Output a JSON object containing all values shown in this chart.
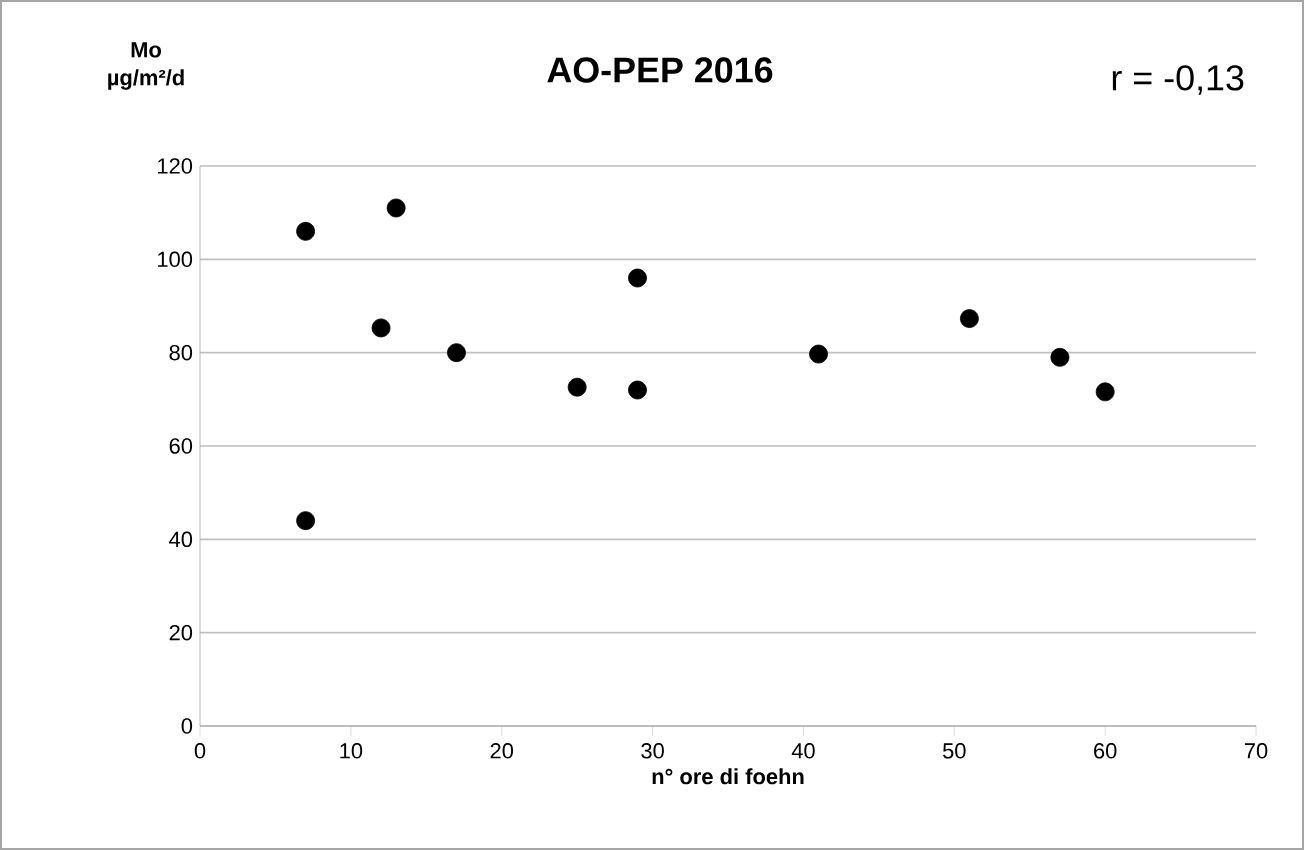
{
  "chart_data": {
    "type": "scatter",
    "title": "AO-PEP 2016",
    "xlabel": "n° ore di foehn",
    "ylabel": "Mo µg/m²/d",
    "annotations": [
      "r = -0,13"
    ],
    "x": [
      7,
      7,
      12,
      13,
      17,
      25,
      29,
      29,
      41,
      51,
      57,
      60
    ],
    "values": [
      106,
      44,
      85.3,
      111,
      80,
      72.6,
      96,
      72,
      79.7,
      87.3,
      79,
      71.6
    ],
    "color": "#000000",
    "marker": "circle",
    "xlim": [
      0,
      70
    ],
    "xticks": [
      0,
      10,
      20,
      30,
      40,
      50,
      60,
      70
    ],
    "ylim": [
      0,
      120
    ],
    "yticks": [
      0,
      20,
      40,
      60,
      80,
      100,
      120
    ],
    "grid": "y"
  }
}
